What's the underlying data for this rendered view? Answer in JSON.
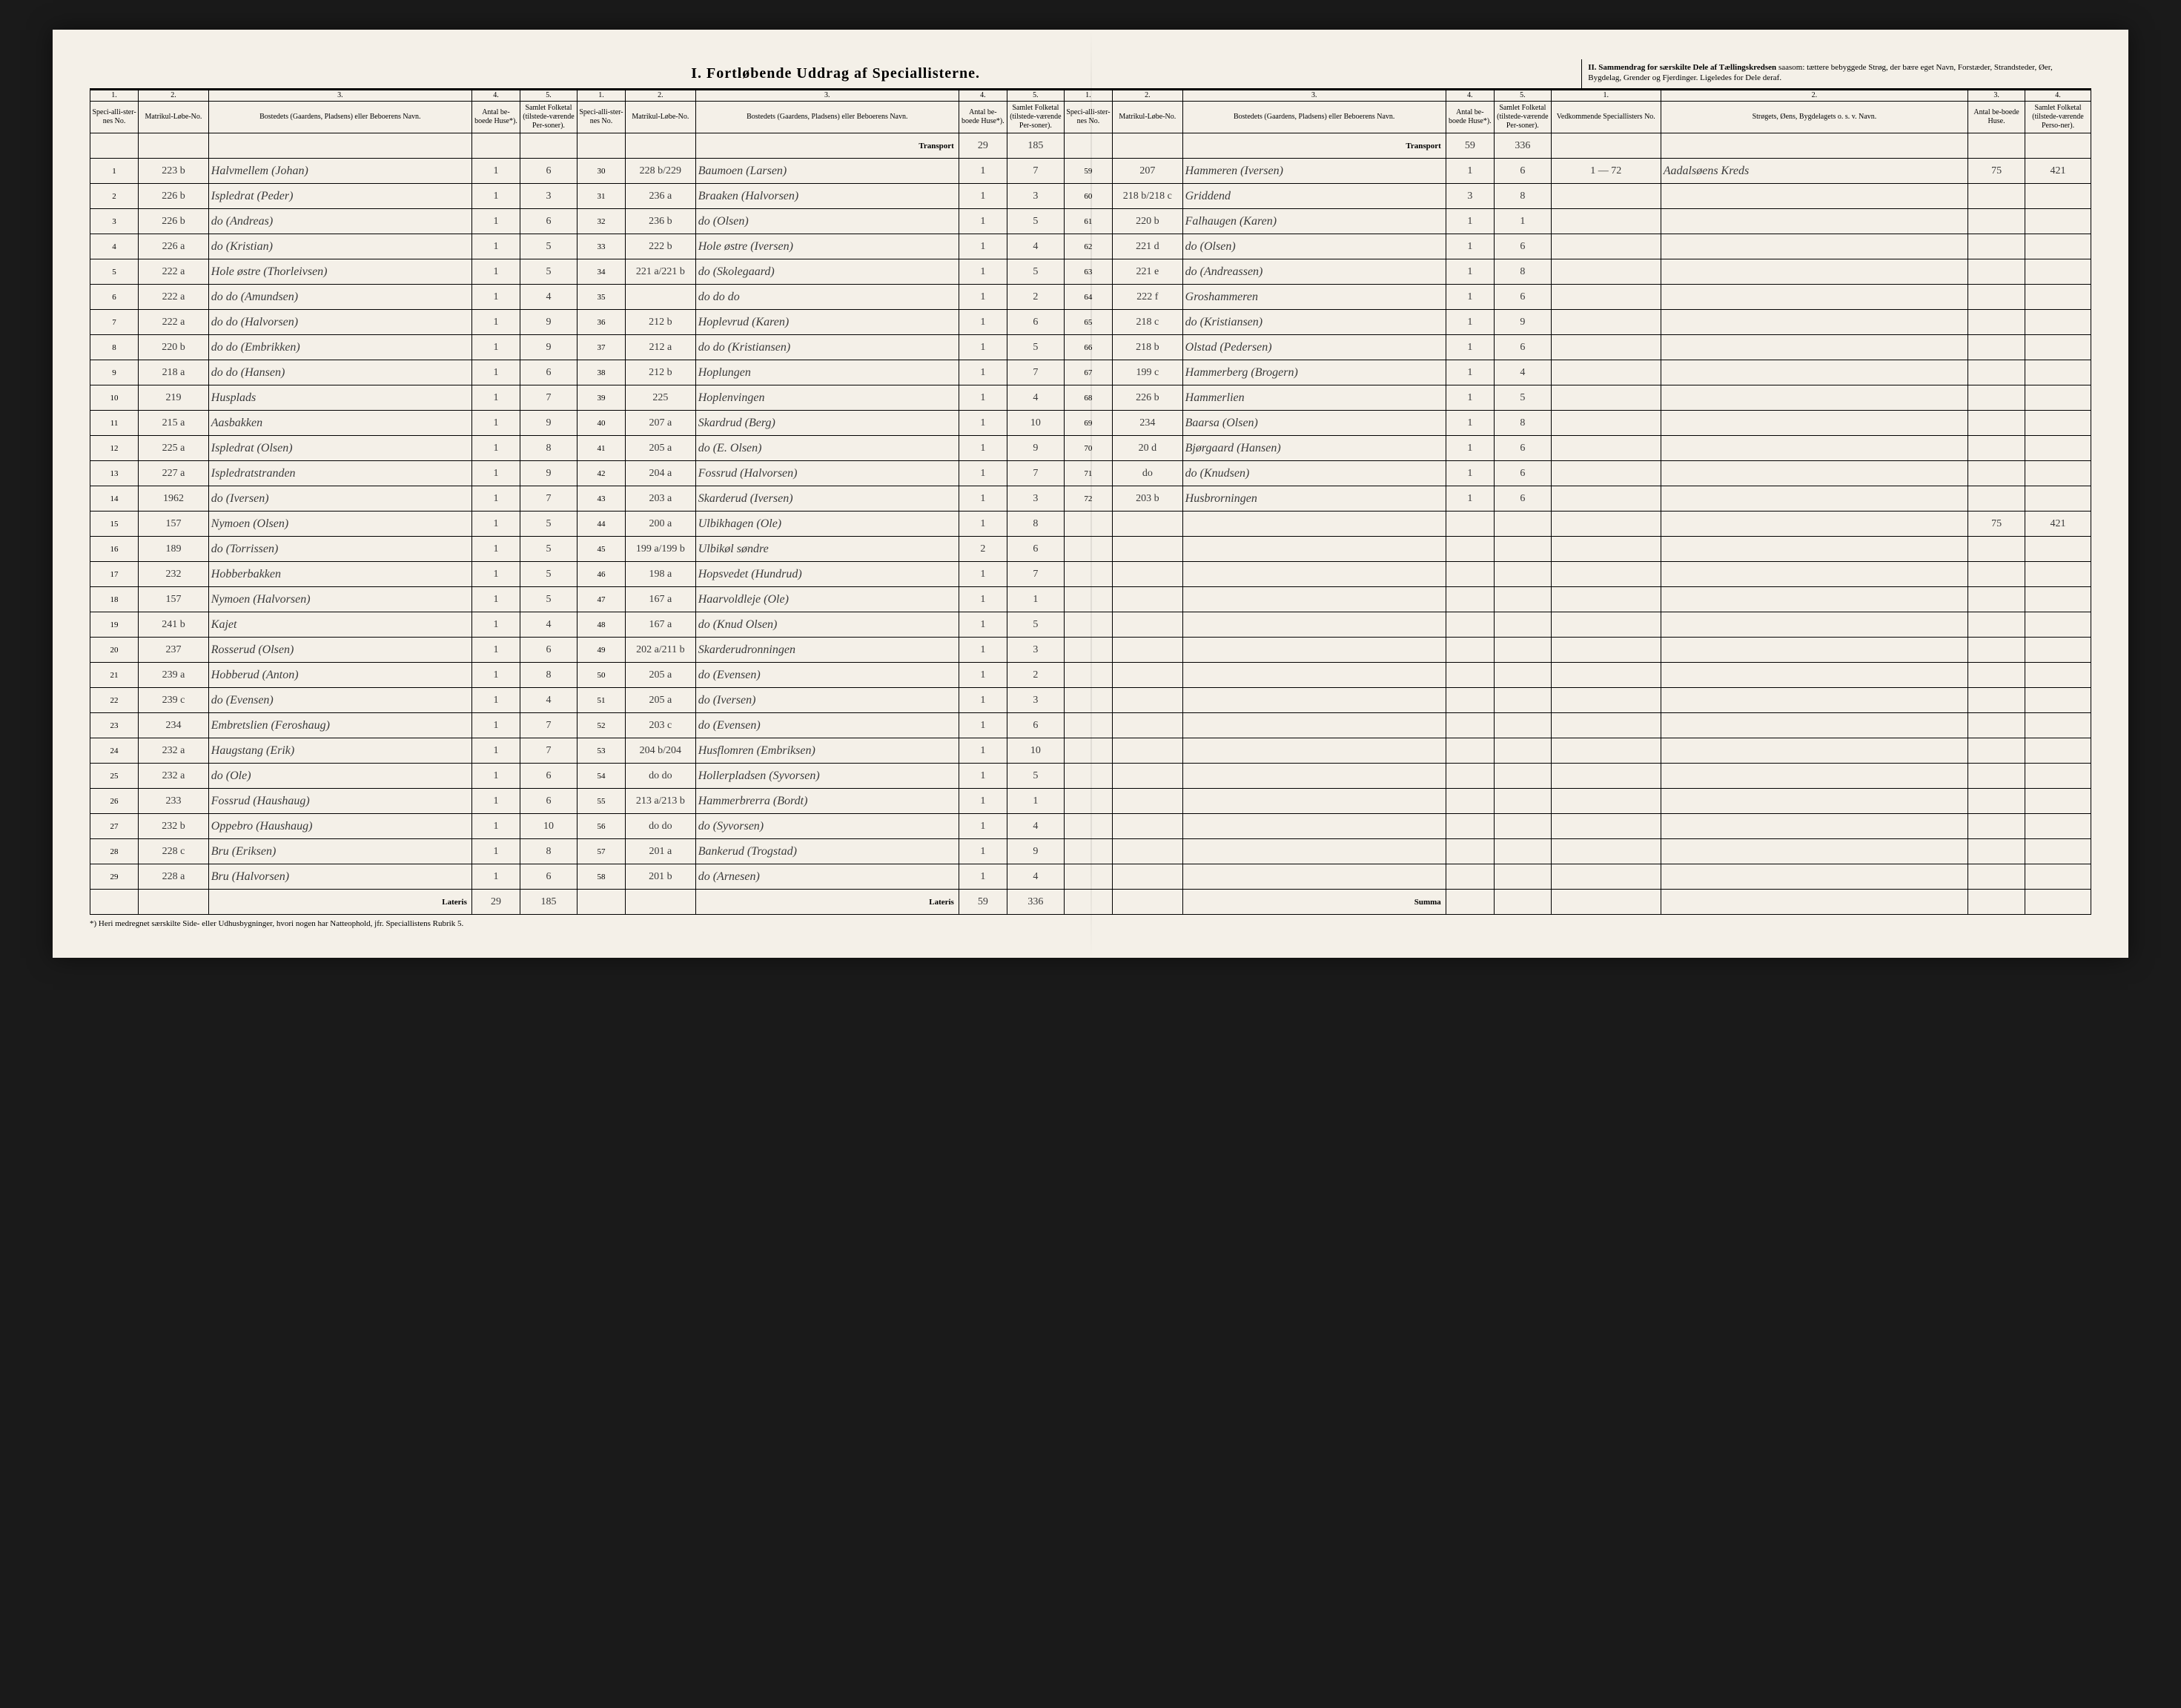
{
  "title_main": "I.  Fortløbende Uddrag af Speciallisterne.",
  "title_right_head": "II. Sammendrag for særskilte Dele af Tællingskredsen",
  "title_right_body": "saasom: tættere bebyggede Strøg, der bære eget Navn, Forstæder, Strandsteder, Øer, Bygdelag, Grender og Fjerdinger. Ligeledes for Dele deraf.",
  "colnums": [
    "1.",
    "2.",
    "3.",
    "4.",
    "5.",
    "1.",
    "2.",
    "3.",
    "4.",
    "5.",
    "1.",
    "2.",
    "3.",
    "4.",
    "5.",
    "1.",
    "2.",
    "3.",
    "4."
  ],
  "headers": {
    "spec": "Speci-alli-ster-nes No.",
    "matr": "Matrikul-Løbe-No.",
    "bost": "Bostedets (Gaardens, Pladsens) eller Beboerens Navn.",
    "huse": "Antal be-boede Huse*).",
    "folk": "Samlet Folketal (tilstede-værende Per-soner).",
    "ved": "Vedkommende Speciallisters No.",
    "strog": "Strøgets, Øens, Bygdelagets o. s. v. Navn.",
    "huse2": "Antal be-boede Huse.",
    "folk2": "Samlet Folketal (tilstede-værende Perso-ner)."
  },
  "transport_label": "Transport",
  "lateris_label": "Lateris",
  "summa_label": "Summa",
  "footnote": "*) Heri medregnet særskilte Side- eller Udhusbygninger, hvori nogen har Natteophold, jfr. Speciallistens Rubrik 5.",
  "transport_b": {
    "huse": "29",
    "folk": "185"
  },
  "transport_c": {
    "huse": "59",
    "folk": "336"
  },
  "lateris_a": {
    "huse": "29",
    "folk": "185"
  },
  "lateris_b": {
    "huse": "59",
    "folk": "336"
  },
  "summary": {
    "ved": "1 — 72",
    "strog": "Aadalsøens Kreds",
    "huse": "75",
    "folk": "421"
  },
  "summary_total": {
    "huse": "75",
    "folk": "421"
  },
  "rowsA": [
    {
      "n": "1",
      "m": "223 b",
      "b": "Halvmellem (Johan)",
      "h": "1",
      "f": "6"
    },
    {
      "n": "2",
      "m": "226 b",
      "b": "Ispledrat (Peder)",
      "h": "1",
      "f": "3"
    },
    {
      "n": "3",
      "m": "226 b",
      "b": "do    (Andreas)",
      "h": "1",
      "f": "6"
    },
    {
      "n": "4",
      "m": "226 a",
      "b": "do    (Kristian)",
      "h": "1",
      "f": "5"
    },
    {
      "n": "5",
      "m": "222 a",
      "b": "Hole østre (Thorleivsen)",
      "h": "1",
      "f": "5"
    },
    {
      "n": "6",
      "m": "222 a",
      "b": "do   do (Amundsen)",
      "h": "1",
      "f": "4"
    },
    {
      "n": "7",
      "m": "222 a",
      "b": "do   do (Halvorsen)",
      "h": "1",
      "f": "9"
    },
    {
      "n": "8",
      "m": "220 b",
      "b": "do   do (Embrikken)",
      "h": "1",
      "f": "9"
    },
    {
      "n": "9",
      "m": "218 a",
      "b": "do   do (Hansen)",
      "h": "1",
      "f": "6"
    },
    {
      "n": "10",
      "m": "219",
      "b": "Husplads",
      "h": "1",
      "f": "7"
    },
    {
      "n": "11",
      "m": "215 a",
      "b": "Aasbakken",
      "h": "1",
      "f": "9"
    },
    {
      "n": "12",
      "m": "225 a",
      "b": "Ispledrat (Olsen)",
      "h": "1",
      "f": "8"
    },
    {
      "n": "13",
      "m": "227 a",
      "b": "Ispledratstranden",
      "h": "1",
      "f": "9"
    },
    {
      "n": "14",
      "m": "1962",
      "b": "do   (Iversen)",
      "h": "1",
      "f": "7"
    },
    {
      "n": "15",
      "m": "157",
      "b": "Nymoen (Olsen)",
      "h": "1",
      "f": "5"
    },
    {
      "n": "16",
      "m": "189",
      "b": "do   (Torrissen)",
      "h": "1",
      "f": "5"
    },
    {
      "n": "17",
      "m": "232",
      "b": "Hobberbakken",
      "h": "1",
      "f": "5"
    },
    {
      "n": "18",
      "m": "157",
      "b": "Nymoen (Halvorsen)",
      "h": "1",
      "f": "5"
    },
    {
      "n": "19",
      "m": "241 b",
      "b": "Kajet",
      "h": "1",
      "f": "4"
    },
    {
      "n": "20",
      "m": "237",
      "b": "Rosserud (Olsen)",
      "h": "1",
      "f": "6"
    },
    {
      "n": "21",
      "m": "239 a",
      "b": "Hobberud (Anton)",
      "h": "1",
      "f": "8"
    },
    {
      "n": "22",
      "m": "239 c",
      "b": "do   (Evensen)",
      "h": "1",
      "f": "4"
    },
    {
      "n": "23",
      "m": "234",
      "b": "Embretslien (Feroshaug)",
      "h": "1",
      "f": "7"
    },
    {
      "n": "24",
      "m": "232 a",
      "b": "Haugstang (Erik)",
      "h": "1",
      "f": "7"
    },
    {
      "n": "25",
      "m": "232 a",
      "b": "do    (Ole)",
      "h": "1",
      "f": "6"
    },
    {
      "n": "26",
      "m": "233",
      "b": "Fossrud (Haushaug)",
      "h": "1",
      "f": "6"
    },
    {
      "n": "27",
      "m": "232 b",
      "b": "Oppebro (Haushaug)",
      "h": "1",
      "f": "10"
    },
    {
      "n": "28",
      "m": "228 c",
      "b": "Bru (Eriksen)",
      "h": "1",
      "f": "8"
    },
    {
      "n": "29",
      "m": "228 a",
      "b": "Bru (Halvorsen)",
      "h": "1",
      "f": "6"
    }
  ],
  "rowsB": [
    {
      "n": "30",
      "m": "228 b/229",
      "b": "Baumoen (Larsen)",
      "h": "1",
      "f": "7"
    },
    {
      "n": "31",
      "m": "236 a",
      "b": "Braaken (Halvorsen)",
      "h": "1",
      "f": "3"
    },
    {
      "n": "32",
      "m": "236 b",
      "b": "do    (Olsen)",
      "h": "1",
      "f": "5"
    },
    {
      "n": "33",
      "m": "222 b",
      "b": "Hole østre (Iversen)",
      "h": "1",
      "f": "4"
    },
    {
      "n": "34",
      "m": "221 a/221 b",
      "b": "do  (Skolegaard)",
      "h": "1",
      "f": "5"
    },
    {
      "n": "35",
      "m": "",
      "b": "do    do    do",
      "h": "1",
      "f": "2"
    },
    {
      "n": "36",
      "m": "212 b",
      "b": "Hoplevrud (Karen)",
      "h": "1",
      "f": "6"
    },
    {
      "n": "37",
      "m": "212 a",
      "b": "do  do (Kristiansen)",
      "h": "1",
      "f": "5"
    },
    {
      "n": "38",
      "m": "212 b",
      "b": "Hoplungen",
      "h": "1",
      "f": "7"
    },
    {
      "n": "39",
      "m": "225",
      "b": "Hoplenvingen",
      "h": "1",
      "f": "4"
    },
    {
      "n": "40",
      "m": "207 a",
      "b": "Skardrud (Berg)",
      "h": "1",
      "f": "10"
    },
    {
      "n": "41",
      "m": "205 a",
      "b": "do  (E. Olsen)",
      "h": "1",
      "f": "9"
    },
    {
      "n": "42",
      "m": "204 a",
      "b": "Fossrud (Halvorsen)",
      "h": "1",
      "f": "7"
    },
    {
      "n": "43",
      "m": "203 a",
      "b": "Skarderud (Iversen)",
      "h": "1",
      "f": "3"
    },
    {
      "n": "44",
      "m": "200 a",
      "b": "Ulbikhagen (Ole)",
      "h": "1",
      "f": "8"
    },
    {
      "n": "45",
      "m": "199 a/199 b",
      "b": "Ulbikøl søndre",
      "h": "2",
      "f": "6"
    },
    {
      "n": "46",
      "m": "198 a",
      "b": "Hopsvedet (Hundrud)",
      "h": "1",
      "f": "7"
    },
    {
      "n": "47",
      "m": "167 a",
      "b": "Haarvoldleje (Ole)",
      "h": "1",
      "f": "1"
    },
    {
      "n": "48",
      "m": "167 a",
      "b": "do  (Knud Olsen)",
      "h": "1",
      "f": "5"
    },
    {
      "n": "49",
      "m": "202 a/211 b",
      "b": "Skarderudronningen",
      "h": "1",
      "f": "3"
    },
    {
      "n": "50",
      "m": "205 a",
      "b": "do  (Evensen)",
      "h": "1",
      "f": "2"
    },
    {
      "n": "51",
      "m": "205 a",
      "b": "do  (Iversen)",
      "h": "1",
      "f": "3"
    },
    {
      "n": "52",
      "m": "203 c",
      "b": "do  (Evensen)",
      "h": "1",
      "f": "6"
    },
    {
      "n": "53",
      "m": "204 b/204",
      "b": "Husflomren (Embriksen)",
      "h": "1",
      "f": "10"
    },
    {
      "n": "54",
      "m": "do  do",
      "b": "Hollerpladsen (Syvorsen)",
      "h": "1",
      "f": "5"
    },
    {
      "n": "55",
      "m": "213 a/213 b",
      "b": "Hammerbrerra (Bordt)",
      "h": "1",
      "f": "1"
    },
    {
      "n": "56",
      "m": "do  do",
      "b": "do  (Syvorsen)",
      "h": "1",
      "f": "4"
    },
    {
      "n": "57",
      "m": "201 a",
      "b": "Bankerud (Trogstad)",
      "h": "1",
      "f": "9"
    },
    {
      "n": "58",
      "m": "201 b",
      "b": "do  (Arnesen)",
      "h": "1",
      "f": "4"
    }
  ],
  "rowsC": [
    {
      "n": "59",
      "m": "207",
      "b": "Hammeren (Iversen)",
      "h": "1",
      "f": "6"
    },
    {
      "n": "60",
      "m": "218 b/218 c",
      "b": "Griddend",
      "h": "3",
      "f": "8"
    },
    {
      "n": "61",
      "m": "220 b",
      "b": "Falhaugen (Karen)",
      "h": "1",
      "f": "1"
    },
    {
      "n": "62",
      "m": "221 d",
      "b": "do   (Olsen)",
      "h": "1",
      "f": "6"
    },
    {
      "n": "63",
      "m": "221 e",
      "b": "do   (Andreassen)",
      "h": "1",
      "f": "8"
    },
    {
      "n": "64",
      "m": "222 f",
      "b": "Groshammeren",
      "h": "1",
      "f": "6"
    },
    {
      "n": "65",
      "m": "218 c",
      "b": "do  (Kristiansen)",
      "h": "1",
      "f": "9"
    },
    {
      "n": "66",
      "m": "218 b",
      "b": "Olstad (Pedersen)",
      "h": "1",
      "f": "6"
    },
    {
      "n": "67",
      "m": "199 c",
      "b": "Hammerberg (Brogern)",
      "h": "1",
      "f": "4"
    },
    {
      "n": "68",
      "m": "226 b",
      "b": "Hammerlien",
      "h": "1",
      "f": "5"
    },
    {
      "n": "69",
      "m": "234",
      "b": "Baarsa (Olsen)",
      "h": "1",
      "f": "8"
    },
    {
      "n": "70",
      "m": "20 d",
      "b": "Bjørgaard (Hansen)",
      "h": "1",
      "f": "6"
    },
    {
      "n": "71",
      "m": "do",
      "b": "do   (Knudsen)",
      "h": "1",
      "f": "6"
    },
    {
      "n": "72",
      "m": "203 b",
      "b": "Husbrorningen",
      "h": "1",
      "f": "6"
    }
  ]
}
